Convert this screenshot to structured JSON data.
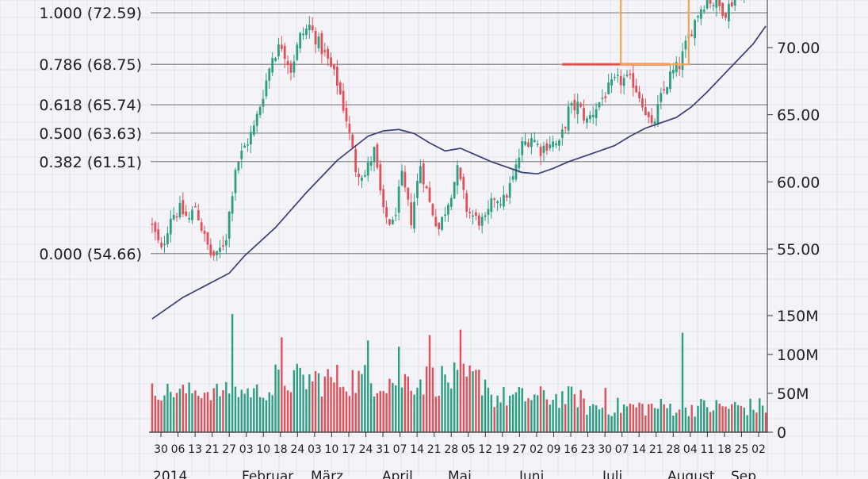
{
  "chart_data": {
    "type": "candlestick",
    "colors": {
      "up": "#2e9e82",
      "down": "#e0505a",
      "moving_average": "#3a3f7a",
      "fib_line": "#8a8a8a",
      "highlight_box": "#f2a55a",
      "resistance": "#d9534f",
      "background": "#f4f4f8",
      "grid": "#e2e2ea"
    },
    "price_axis": {
      "min": 53,
      "max": 74,
      "ticks": [
        "55.00",
        "60.00",
        "65.00",
        "70.00"
      ],
      "tick_values": [
        55,
        60,
        65,
        70
      ]
    },
    "volume_axis": {
      "min": 0,
      "max": 150,
      "unit": "M",
      "ticks": [
        "0",
        "50M",
        "100M",
        "150M"
      ],
      "tick_values": [
        0,
        50,
        100,
        150
      ]
    },
    "fib_levels": [
      {
        "label": "1.000 (72.59)",
        "price": 72.59
      },
      {
        "label": "0.786 (68.75)",
        "price": 68.75
      },
      {
        "label": "0.618 (65.74)",
        "price": 65.74
      },
      {
        "label": "0.500 (63.63)",
        "price": 63.63
      },
      {
        "label": "0.382 (61.51)",
        "price": 61.51
      },
      {
        "label": "0.000 (54.66)",
        "price": 54.66
      }
    ],
    "x_day_labels": [
      "30",
      "06",
      "13",
      "21",
      "27",
      "03",
      "10",
      "18",
      "24",
      "03",
      "10",
      "17",
      "24",
      "31",
      "07",
      "14",
      "21",
      "28",
      "05",
      "12",
      "19",
      "27",
      "02",
      "09",
      "16",
      "23",
      "30",
      "07",
      "14",
      "21",
      "28",
      "04",
      "11",
      "18",
      "25",
      "02"
    ],
    "x_month_labels": [
      "2014",
      "Februar",
      "März",
      "April",
      "Mai",
      "Juni",
      "Juli",
      "August",
      "Sep"
    ],
    "anchors": [
      [
        0,
        56.7
      ],
      [
        3,
        54.8
      ],
      [
        6,
        57.5
      ],
      [
        9,
        57.9
      ],
      [
        12,
        57.2
      ],
      [
        14,
        58.2
      ],
      [
        17,
        55.8
      ],
      [
        19,
        54.6
      ],
      [
        21,
        54.4
      ],
      [
        24,
        56.0
      ],
      [
        27,
        61.1
      ],
      [
        30,
        62.6
      ],
      [
        33,
        64.0
      ],
      [
        36,
        66.6
      ],
      [
        39,
        69.4
      ],
      [
        42,
        70.2
      ],
      [
        45,
        68.4
      ],
      [
        48,
        70.8
      ],
      [
        51,
        71.6
      ],
      [
        54,
        70.3
      ],
      [
        57,
        69.0
      ],
      [
        60,
        67.4
      ],
      [
        63,
        64.7
      ],
      [
        66,
        61.0
      ],
      [
        69,
        60.5
      ],
      [
        72,
        62.3
      ],
      [
        75,
        57.6
      ],
      [
        78,
        56.8
      ],
      [
        81,
        60.3
      ],
      [
        84,
        57.2
      ],
      [
        87,
        61.3
      ],
      [
        90,
        58.4
      ],
      [
        93,
        56.5
      ],
      [
        96,
        58.6
      ],
      [
        99,
        60.8
      ],
      [
        102,
        58.0
      ],
      [
        105,
        57.2
      ],
      [
        108,
        57.0
      ],
      [
        111,
        58.9
      ],
      [
        114,
        58.6
      ],
      [
        117,
        60.2
      ],
      [
        120,
        62.7
      ],
      [
        123,
        63.4
      ],
      [
        126,
        62.4
      ],
      [
        129,
        63.0
      ],
      [
        132,
        62.7
      ],
      [
        135,
        65.3
      ],
      [
        138,
        65.7
      ],
      [
        141,
        64.5
      ],
      [
        144,
        65.6
      ],
      [
        147,
        66.6
      ],
      [
        150,
        67.4
      ],
      [
        153,
        67.6
      ],
      [
        156,
        67.4
      ],
      [
        159,
        66.0
      ],
      [
        162,
        63.9
      ],
      [
        165,
        66.2
      ],
      [
        168,
        67.9
      ],
      [
        171,
        68.7
      ],
      [
        174,
        70.8
      ],
      [
        177,
        72.6
      ],
      [
        180,
        73.7
      ],
      [
        183,
        73.2
      ],
      [
        186,
        72.7
      ],
      [
        189,
        73.8
      ],
      [
        192,
        74.3
      ],
      [
        195,
        74.6
      ],
      [
        199,
        74.9
      ]
    ],
    "ma_points": [
      [
        0,
        49.8
      ],
      [
        10,
        51.4
      ],
      [
        20,
        52.6
      ],
      [
        25,
        53.2
      ],
      [
        30,
        54.5
      ],
      [
        40,
        56.6
      ],
      [
        50,
        59.2
      ],
      [
        60,
        61.6
      ],
      [
        65,
        62.5
      ],
      [
        70,
        63.4
      ],
      [
        75,
        63.8
      ],
      [
        80,
        63.9
      ],
      [
        85,
        63.6
      ],
      [
        90,
        62.9
      ],
      [
        95,
        62.3
      ],
      [
        100,
        62.5
      ],
      [
        105,
        62.0
      ],
      [
        110,
        61.5
      ],
      [
        115,
        61.1
      ],
      [
        120,
        60.7
      ],
      [
        125,
        60.6
      ],
      [
        130,
        61.0
      ],
      [
        135,
        61.5
      ],
      [
        140,
        61.9
      ],
      [
        145,
        62.3
      ],
      [
        150,
        62.7
      ],
      [
        155,
        63.4
      ],
      [
        160,
        64.0
      ],
      [
        165,
        64.4
      ],
      [
        170,
        64.8
      ],
      [
        175,
        65.6
      ],
      [
        180,
        66.7
      ],
      [
        185,
        67.9
      ],
      [
        190,
        69.1
      ],
      [
        195,
        70.3
      ],
      [
        199,
        71.6
      ]
    ],
    "volume_peaks": [
      [
        26,
        152
      ],
      [
        42,
        122
      ],
      [
        70,
        118
      ],
      [
        80,
        110
      ],
      [
        90,
        125
      ],
      [
        100,
        132
      ],
      [
        147,
        57
      ],
      [
        172,
        128
      ]
    ],
    "annotations": [
      {
        "type": "resistance_line",
        "price": 68.75,
        "from_index": 133,
        "to_index": 168
      },
      {
        "type": "box",
        "price_low": 68.75,
        "price_high": 74.0,
        "from_index": 152,
        "to_index": 174
      }
    ]
  }
}
